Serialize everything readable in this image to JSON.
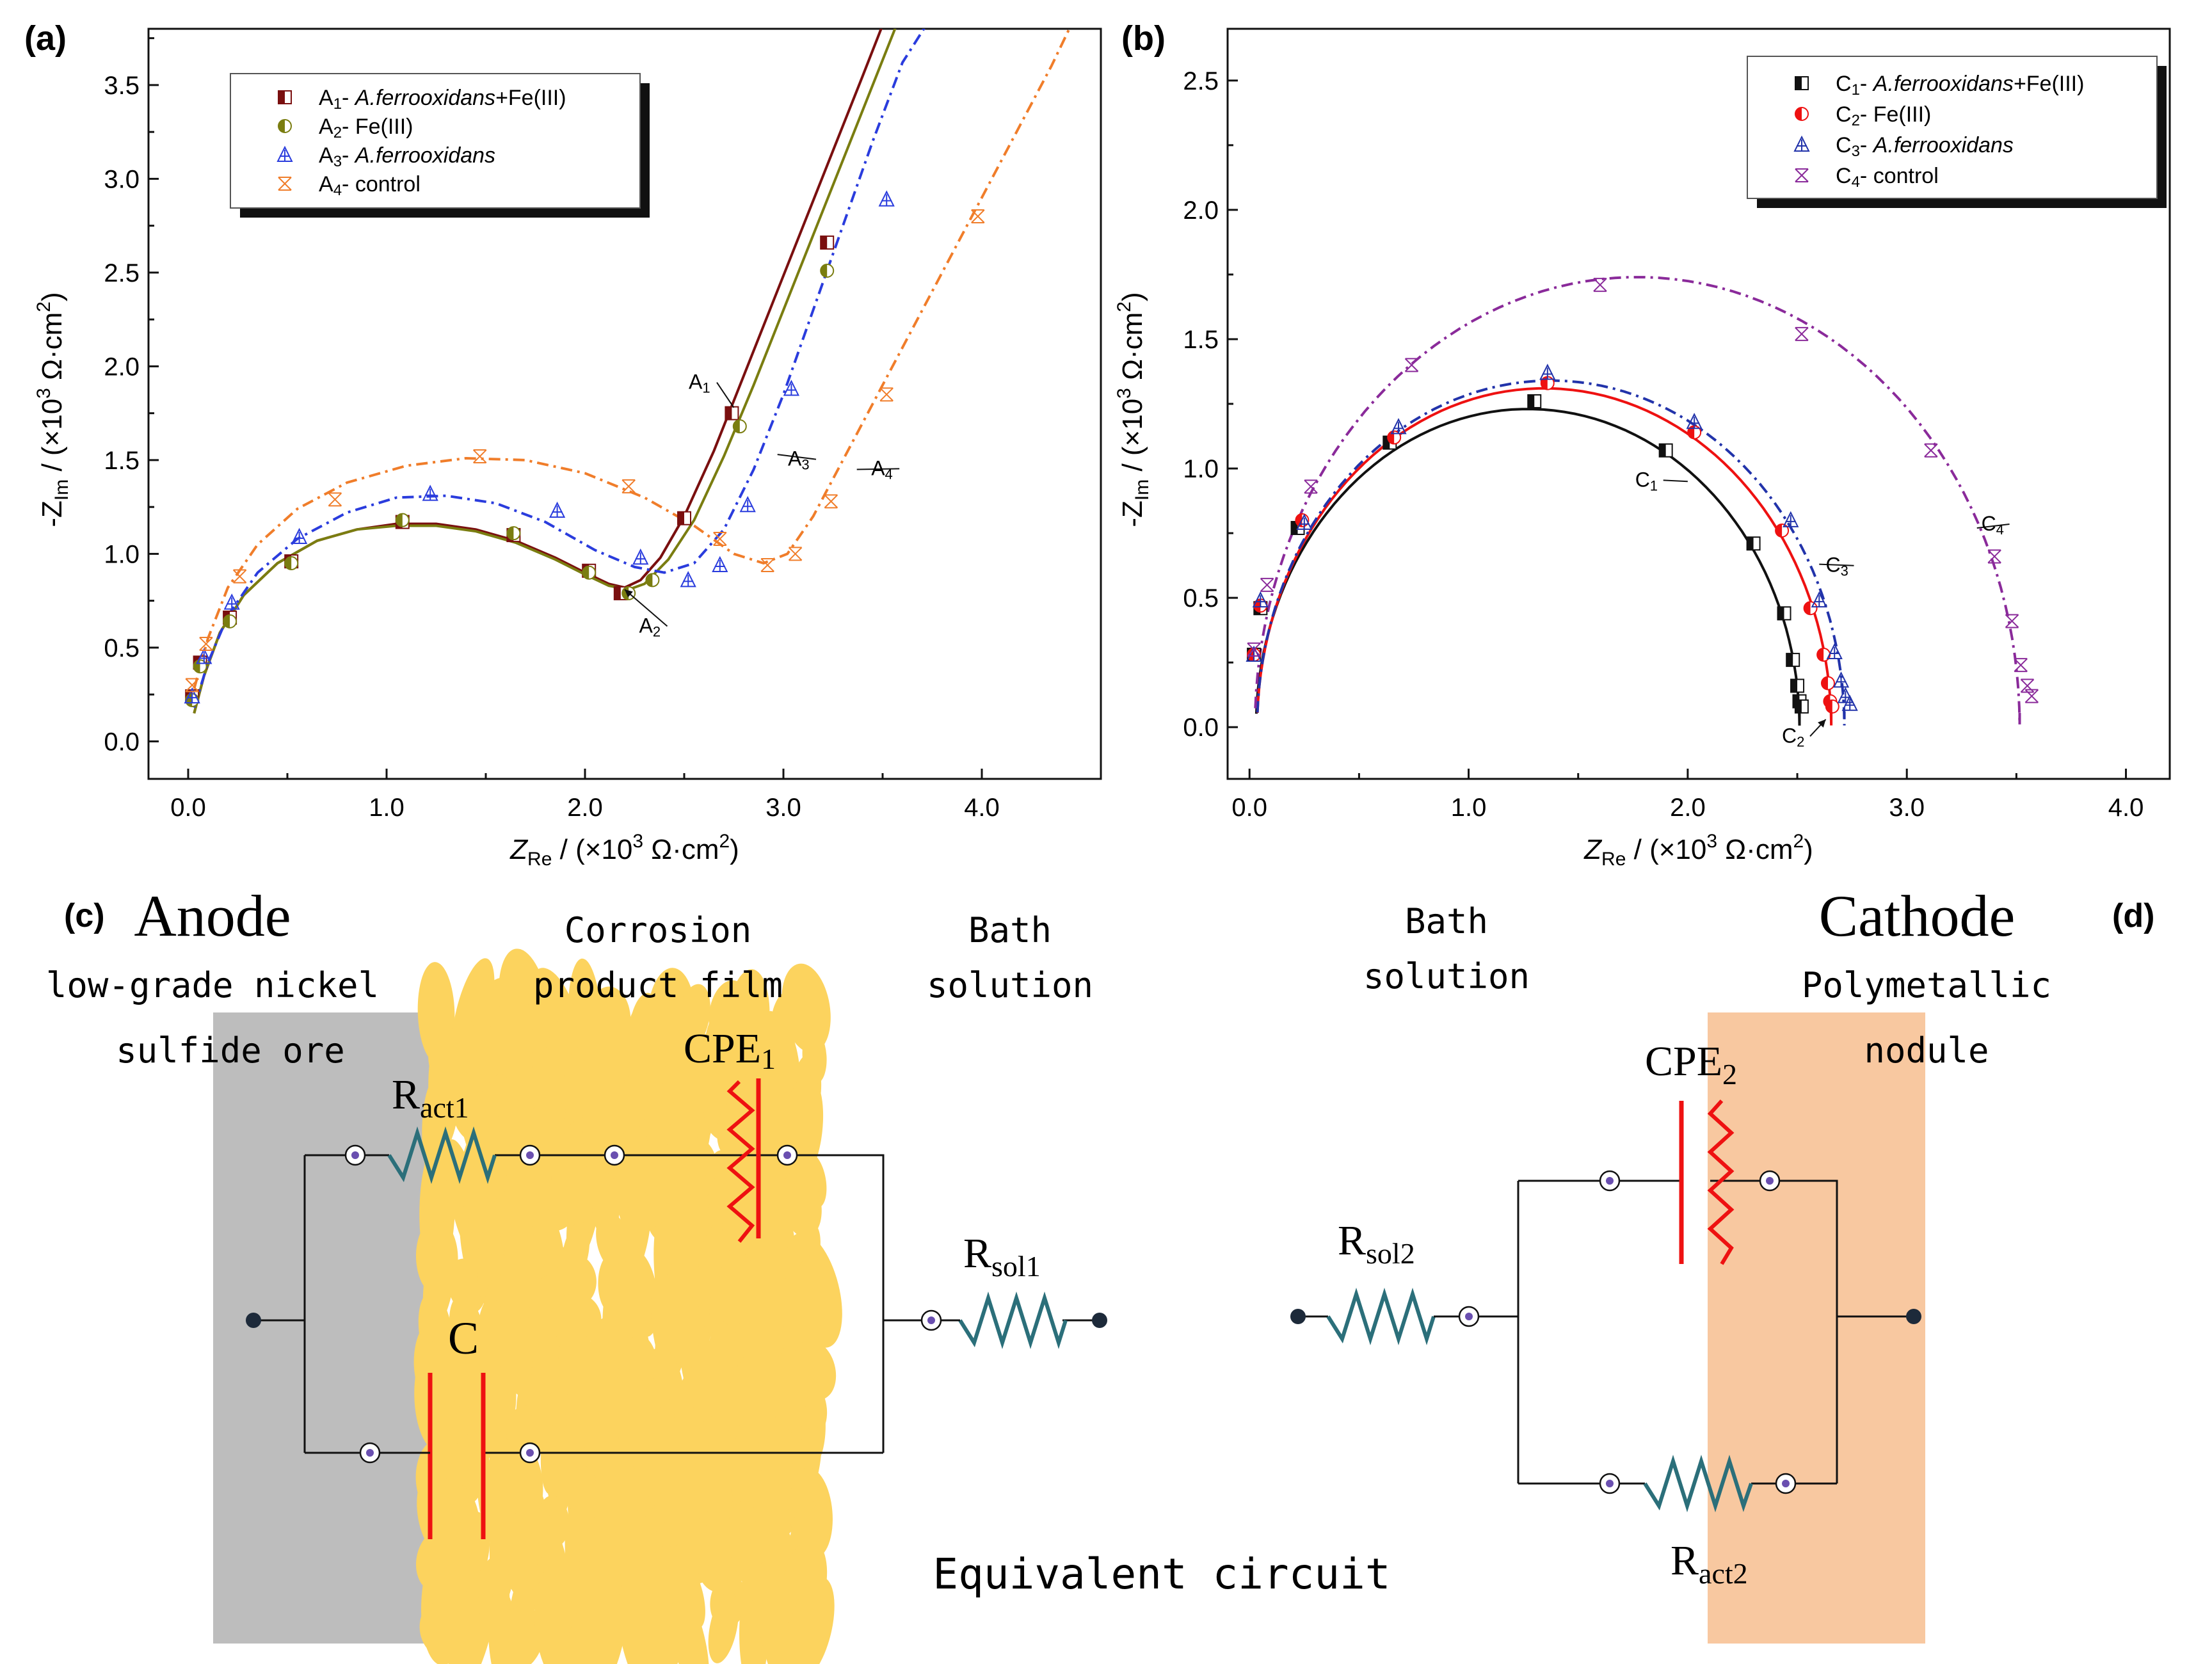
{
  "panel_labels": {
    "a": "(a)",
    "b": "(b)",
    "c": "(c)",
    "d": "(d)"
  },
  "chart_data": [
    {
      "id": "a",
      "type": "scatter",
      "title": "",
      "xlabel_main": "Z",
      "xlabel_sub": "Re",
      "xlabel_unit_pre": " / (×10",
      "xlabel_exp": "3",
      "xlabel_unit_post": " Ω·cm",
      "xlabel_sq": "2",
      "xlabel_close": ")",
      "ylabel_main": "-Z",
      "ylabel_sub": "Im",
      "ylabel_unit_pre": " / (×10",
      "ylabel_exp": "3",
      "ylabel_unit_post": " Ω·cm",
      "ylabel_sq": "2",
      "ylabel_close": ")",
      "xlim": [
        -0.2,
        4.6
      ],
      "ylim": [
        -0.2,
        3.8
      ],
      "xticks": [
        0.0,
        1.0,
        2.0,
        3.0,
        4.0
      ],
      "xtick_labels": [
        "0.0",
        "1.0",
        "2.0",
        "3.0",
        "4.0"
      ],
      "yticks": [
        0.0,
        0.5,
        1.0,
        1.5,
        2.0,
        2.5,
        3.0,
        3.5
      ],
      "ytick_labels": [
        "0.0",
        "0.5",
        "1.0",
        "1.5",
        "2.0",
        "2.5",
        "3.0",
        "3.5"
      ],
      "legend": [
        {
          "prefix": "A",
          "sub": "1",
          "dash": "- ",
          "italic": "A.ferrooxidans",
          "suffix": "+Fe(III)",
          "color": "#7a0f0f",
          "marker": "half-square"
        },
        {
          "prefix": "A",
          "sub": "2",
          "dash": "- ",
          "italic": "",
          "suffix": "Fe(III)",
          "color": "#7a7d10",
          "marker": "half-circle"
        },
        {
          "prefix": "A",
          "sub": "3",
          "dash": "- ",
          "italic": "A.ferrooxidans",
          "suffix": "",
          "color": "#2a3cdd",
          "marker": "triangle"
        },
        {
          "prefix": "A",
          "sub": "4",
          "dash": "- ",
          "italic": "",
          "suffix": "control",
          "color": "#f07d2a",
          "marker": "x"
        }
      ],
      "annotations": [
        {
          "label": "A",
          "sub": "1",
          "x": 2.75,
          "y": 1.78,
          "lx": 2.6,
          "ly": 1.88
        },
        {
          "label": "A",
          "sub": "2",
          "x": 2.2,
          "y": 0.81,
          "lx": 2.35,
          "ly": 0.58
        },
        {
          "label": "A",
          "sub": "3",
          "x": 2.97,
          "y": 1.53,
          "lx": 3.1,
          "ly": 1.47
        },
        {
          "label": "A",
          "sub": "4",
          "x": 3.37,
          "y": 1.45,
          "lx": 3.52,
          "ly": 1.42
        }
      ],
      "series": [
        {
          "name": "A1",
          "color": "#7a0f0f",
          "line": "solid",
          "marker": "half-square",
          "fit_x": [
            0.03,
            0.08,
            0.16,
            0.28,
            0.45,
            0.65,
            0.85,
            1.05,
            1.25,
            1.45,
            1.65,
            1.85,
            2.0,
            2.12,
            2.2,
            2.28,
            2.38,
            2.5,
            2.65,
            2.8,
            2.95,
            3.1,
            3.25,
            3.4,
            3.5
          ],
          "fit_y": [
            0.15,
            0.35,
            0.58,
            0.78,
            0.95,
            1.07,
            1.13,
            1.16,
            1.16,
            1.13,
            1.07,
            0.98,
            0.9,
            0.84,
            0.82,
            0.86,
            0.98,
            1.2,
            1.55,
            1.95,
            2.35,
            2.75,
            3.15,
            3.55,
            3.82
          ],
          "x": [
            0.02,
            0.06,
            0.21,
            0.52,
            1.08,
            1.64,
            2.02,
            2.18,
            2.5,
            2.74,
            3.22
          ],
          "y": [
            0.24,
            0.42,
            0.66,
            0.96,
            1.17,
            1.1,
            0.91,
            0.79,
            1.19,
            1.75,
            2.66
          ]
        },
        {
          "name": "A2",
          "color": "#7a7d10",
          "line": "solid",
          "marker": "half-circle",
          "fit_x": [
            0.03,
            0.08,
            0.16,
            0.28,
            0.45,
            0.65,
            0.85,
            1.05,
            1.25,
            1.45,
            1.65,
            1.85,
            2.0,
            2.12,
            2.22,
            2.3,
            2.42,
            2.55,
            2.7,
            2.85,
            3.0,
            3.15,
            3.3,
            3.45,
            3.57
          ],
          "fit_y": [
            0.15,
            0.35,
            0.58,
            0.78,
            0.95,
            1.07,
            1.13,
            1.15,
            1.15,
            1.12,
            1.06,
            0.97,
            0.89,
            0.83,
            0.81,
            0.84,
            0.97,
            1.18,
            1.52,
            1.9,
            2.3,
            2.7,
            3.1,
            3.5,
            3.82
          ],
          "x": [
            0.02,
            0.06,
            0.21,
            0.52,
            1.08,
            1.64,
            2.02,
            2.22,
            2.34,
            2.78,
            3.22
          ],
          "y": [
            0.22,
            0.4,
            0.64,
            0.95,
            1.18,
            1.11,
            0.9,
            0.79,
            0.86,
            1.68,
            2.51
          ]
        },
        {
          "name": "A3",
          "color": "#2a3cdd",
          "line": "dashdot",
          "marker": "triangle",
          "fit_x": [
            0.03,
            0.1,
            0.2,
            0.35,
            0.55,
            0.8,
            1.05,
            1.3,
            1.55,
            1.8,
            2.05,
            2.25,
            2.4,
            2.55,
            2.7,
            2.85,
            3.0,
            3.15,
            3.3,
            3.45,
            3.6,
            3.72
          ],
          "fit_y": [
            0.18,
            0.42,
            0.67,
            0.9,
            1.08,
            1.22,
            1.3,
            1.31,
            1.27,
            1.17,
            1.02,
            0.93,
            0.9,
            0.95,
            1.13,
            1.45,
            1.85,
            2.3,
            2.75,
            3.2,
            3.62,
            3.82
          ],
          "x": [
            0.02,
            0.08,
            0.22,
            0.56,
            1.22,
            1.86,
            2.28,
            2.52,
            2.68,
            2.82,
            3.04,
            3.52
          ],
          "y": [
            0.24,
            0.45,
            0.74,
            1.09,
            1.32,
            1.23,
            0.98,
            0.86,
            0.94,
            1.26,
            1.88,
            2.89
          ]
        },
        {
          "name": "A4",
          "color": "#f07d2a",
          "line": "dashdot",
          "marker": "x",
          "fit_x": [
            0.03,
            0.1,
            0.2,
            0.35,
            0.55,
            0.8,
            1.1,
            1.4,
            1.7,
            2.0,
            2.3,
            2.55,
            2.75,
            2.9,
            3.02,
            3.15,
            3.3,
            3.45,
            3.6,
            3.75,
            3.9,
            4.05,
            4.2,
            4.35,
            4.45
          ],
          "fit_y": [
            0.28,
            0.55,
            0.82,
            1.05,
            1.24,
            1.38,
            1.47,
            1.51,
            1.5,
            1.43,
            1.3,
            1.15,
            1.0,
            0.95,
            1.0,
            1.2,
            1.5,
            1.8,
            2.1,
            2.4,
            2.7,
            3.0,
            3.3,
            3.6,
            3.82
          ],
          "x": [
            0.02,
            0.09,
            0.26,
            0.74,
            1.47,
            2.22,
            2.68,
            2.92,
            3.06,
            3.24,
            3.52,
            3.98
          ],
          "y": [
            0.3,
            0.52,
            0.88,
            1.29,
            1.52,
            1.36,
            1.08,
            0.94,
            1.0,
            1.28,
            1.85,
            2.8
          ]
        }
      ]
    },
    {
      "id": "b",
      "type": "scatter",
      "title": "",
      "xlabel_main": "Z",
      "xlabel_sub": "Re",
      "xlabel_unit_pre": " / (×10",
      "xlabel_exp": "3",
      "xlabel_unit_post": " Ω·cm",
      "xlabel_sq": "2",
      "xlabel_close": ")",
      "ylabel_main": "-Z",
      "ylabel_sub": "Im",
      "ylabel_unit_pre": " / (×10",
      "ylabel_exp": "3",
      "ylabel_unit_post": " Ω·cm",
      "ylabel_sq": "2",
      "ylabel_close": ")",
      "xlim": [
        -0.1,
        4.2
      ],
      "ylim": [
        -0.2,
        2.7
      ],
      "xticks": [
        0.0,
        1.0,
        2.0,
        3.0,
        4.0
      ],
      "xtick_labels": [
        "0.0",
        "1.0",
        "2.0",
        "3.0",
        "4.0"
      ],
      "yticks": [
        0.0,
        0.5,
        1.0,
        1.5,
        2.0,
        2.5
      ],
      "ytick_labels": [
        "0.0",
        "0.5",
        "1.0",
        "1.5",
        "2.0",
        "2.5"
      ],
      "legend": [
        {
          "prefix": "C",
          "sub": "1",
          "dash": "- ",
          "italic": "A.ferrooxidans",
          "suffix": "+Fe(III)",
          "color": "#111111",
          "marker": "half-square"
        },
        {
          "prefix": "C",
          "sub": "2",
          "dash": "- ",
          "italic": "",
          "suffix": "Fe(III)",
          "color": "#ee1111",
          "marker": "half-circle"
        },
        {
          "prefix": "C",
          "sub": "3",
          "dash": "- ",
          "italic": "A.ferrooxidans",
          "suffix": "",
          "color": "#2233aa",
          "marker": "triangle"
        },
        {
          "prefix": "C",
          "sub": "4",
          "dash": "- ",
          "italic": "",
          "suffix": "control",
          "color": "#8a2a9a",
          "marker": "x"
        }
      ],
      "annotations": [
        {
          "label": "C",
          "sub": "1",
          "x": 2.0,
          "y": 0.95,
          "lx": 1.83,
          "ly": 0.93
        },
        {
          "label": "C",
          "sub": "2",
          "x": 2.63,
          "y": 0.03,
          "lx": 2.5,
          "ly": -0.06
        },
        {
          "label": "C",
          "sub": "3",
          "x": 2.6,
          "y": 0.63,
          "lx": 2.7,
          "ly": 0.6
        },
        {
          "label": "C",
          "sub": "4",
          "x": 3.32,
          "y": 0.77,
          "lx": 3.41,
          "ly": 0.76
        }
      ],
      "series": [
        {
          "name": "C1",
          "color": "#111111",
          "line": "solid",
          "marker": "half-square",
          "fit_arc": [
            1.27,
            0.0,
            1.24,
            1.23
          ],
          "x": [
            0.02,
            0.05,
            0.22,
            0.64,
            1.3,
            1.9,
            2.3,
            2.44,
            2.48,
            2.5,
            2.51,
            2.52
          ],
          "y": [
            0.28,
            0.46,
            0.77,
            1.1,
            1.26,
            1.07,
            0.71,
            0.44,
            0.26,
            0.16,
            0.1,
            0.08
          ]
        },
        {
          "name": "C2",
          "color": "#ee1111",
          "line": "solid",
          "marker": "half-circle",
          "fit_arc": [
            1.345,
            0.0,
            1.31,
            1.31
          ],
          "x": [
            0.02,
            0.05,
            0.24,
            0.66,
            1.36,
            2.03,
            2.43,
            2.56,
            2.62,
            2.64,
            2.65,
            2.66
          ],
          "y": [
            0.28,
            0.47,
            0.8,
            1.12,
            1.33,
            1.14,
            0.76,
            0.46,
            0.28,
            0.17,
            0.1,
            0.08
          ]
        },
        {
          "name": "C3",
          "color": "#2233aa",
          "line": "dashdot",
          "marker": "triangle",
          "fit_arc": [
            1.375,
            0.0,
            1.34,
            1.34
          ],
          "x": [
            0.02,
            0.05,
            0.25,
            0.68,
            1.36,
            2.03,
            2.47,
            2.6,
            2.67,
            2.7,
            2.72,
            2.74
          ],
          "y": [
            0.28,
            0.49,
            0.79,
            1.16,
            1.37,
            1.18,
            0.8,
            0.49,
            0.29,
            0.18,
            0.12,
            0.09
          ]
        },
        {
          "name": "C4",
          "color": "#8a2a9a",
          "line": "dashdot",
          "marker": "x",
          "fit_arc": [
            1.77,
            0.0,
            1.745,
            1.74
          ],
          "x": [
            0.02,
            0.08,
            0.28,
            0.74,
            1.6,
            2.52,
            3.11,
            3.4,
            3.48,
            3.52,
            3.55,
            3.57
          ],
          "y": [
            0.3,
            0.55,
            0.93,
            1.4,
            1.71,
            1.52,
            1.07,
            0.66,
            0.41,
            0.24,
            0.16,
            0.12
          ]
        }
      ]
    }
  ],
  "circuit": {
    "anode_title": "Anode",
    "anode_sub1": "low-grade nickel",
    "anode_sub2": "sulfide ore",
    "film_line1": "Corrosion",
    "film_line2": "product film",
    "bath_left1": "Bath",
    "bath_left2": "solution",
    "bath_right1": "Bath",
    "bath_right2": "solution",
    "cathode_title": "Cathode",
    "cathode_sub1": "Polymetallic",
    "cathode_sub2": "nodule",
    "r_act1_main": "R",
    "r_act1_sub": "act1",
    "cpe1_main": "CPE",
    "cpe1_sub": "1",
    "c_label": "C",
    "r_sol1_main": "R",
    "r_sol1_sub": "sol1",
    "r_sol2_main": "R",
    "r_sol2_sub": "sol2",
    "cpe2_main": "CPE",
    "cpe2_sub": "2",
    "r_act2_main": "R",
    "r_act2_sub": "act2",
    "caption": "Equivalent circuit",
    "colors": {
      "ore": "#bdbdbd",
      "film": "#fcd35e",
      "nodule": "#f8c8a0",
      "resistor": "#2b6f7a",
      "capacitor": "#ee1111",
      "wire": "#111111",
      "node": "#6a4fb0"
    }
  }
}
